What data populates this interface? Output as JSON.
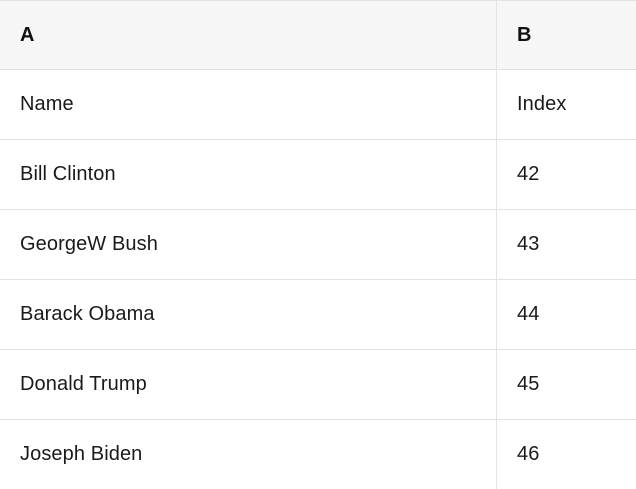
{
  "table": {
    "headers": [
      "A",
      "B"
    ],
    "rows": [
      {
        "a": "Name",
        "b": "Index"
      },
      {
        "a": "Bill Clinton",
        "b": "42"
      },
      {
        "a": "GeorgeW Bush",
        "b": "43"
      },
      {
        "a": "Barack Obama",
        "b": "44"
      },
      {
        "a": "Donald Trump",
        "b": "45"
      },
      {
        "a": "Joseph Biden",
        "b": "46"
      }
    ],
    "colors": {
      "header_background": "#f6f6f6",
      "grid_line": "#e3e3e3",
      "text": "#1a1a1a"
    }
  }
}
